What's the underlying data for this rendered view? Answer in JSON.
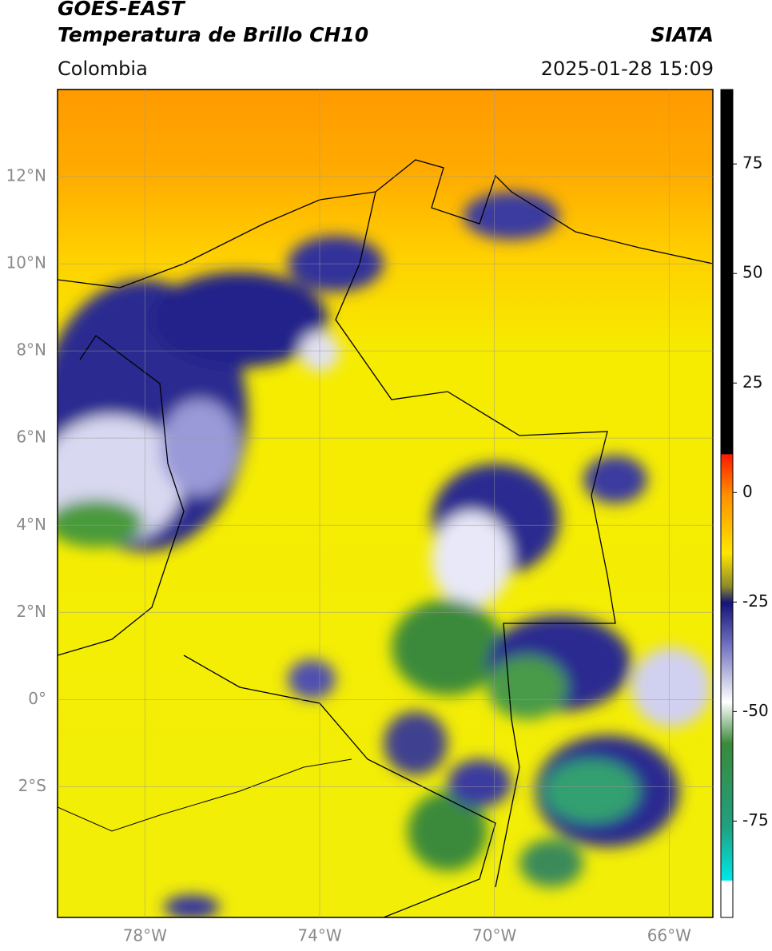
{
  "header": {
    "title": "GOES-EAST",
    "subtitle": "Temperatura de Brillo CH10",
    "source": "SIATA",
    "region": "Colombia",
    "datetime": "2025-01-28 15:09"
  },
  "map": {
    "lonlim": [
      -80,
      -65
    ],
    "latlim": [
      -5,
      14
    ],
    "lon_ticks": [
      {
        "value": -78,
        "label": "78°W"
      },
      {
        "value": -74,
        "label": "74°W"
      },
      {
        "value": -70,
        "label": "70°W"
      },
      {
        "value": -66,
        "label": "66°W"
      }
    ],
    "lat_ticks": [
      {
        "value": 12,
        "label": "12°N"
      },
      {
        "value": 10,
        "label": "10°N"
      },
      {
        "value": 8,
        "label": "8°N"
      },
      {
        "value": 6,
        "label": "6°N"
      },
      {
        "value": 4,
        "label": "4°N"
      },
      {
        "value": 2,
        "label": "2°N"
      },
      {
        "value": 0,
        "label": "0°"
      },
      {
        "value": -2,
        "label": "2°S"
      }
    ]
  },
  "colorbar": {
    "lim": [
      -97,
      92
    ],
    "ticks": [
      75,
      50,
      25,
      0,
      -25,
      -50,
      -75
    ]
  }
}
